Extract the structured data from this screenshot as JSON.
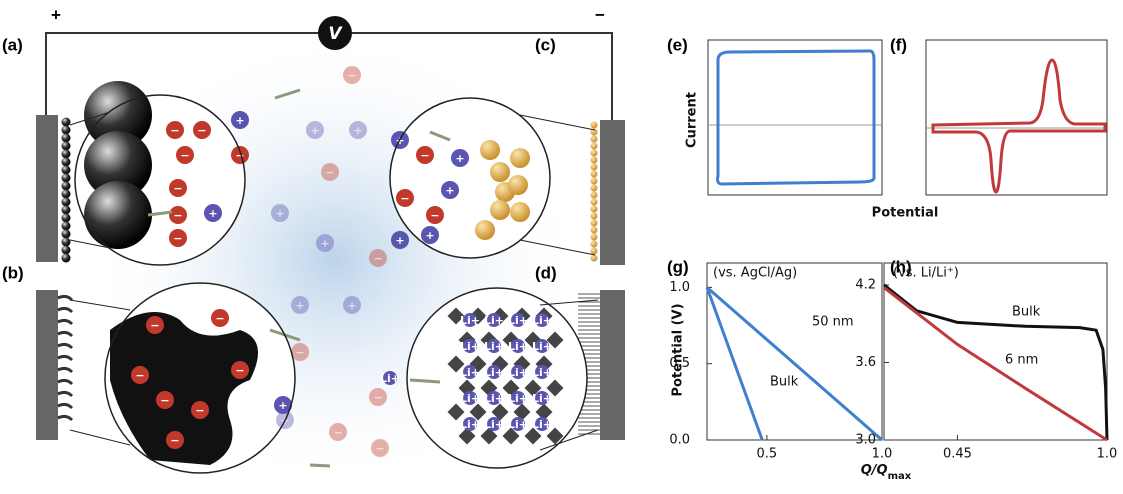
{
  "panels": {
    "a": "(a)",
    "b": "(b)",
    "c": "(c)",
    "d": "(d)",
    "e": "(e)",
    "f": "(f)",
    "g": "(g)",
    "h": "(h)"
  },
  "diagram": {
    "plus": "+",
    "minus": "−",
    "voltmeter": "V",
    "anion": "−",
    "cation": "+",
    "lithium": "Li+"
  },
  "cv": {
    "ylabel": "Current",
    "xlabel": "Potential"
  },
  "chart_data": [
    {
      "type": "line",
      "annotation": "(vs. AgCl/Ag)",
      "ylabel": "Potential (V)",
      "xlabel": {
        "main": "Q/Q",
        "sub": "max"
      },
      "xlim": [
        0.24,
        1
      ],
      "xticks": [
        0.5,
        {
          "value": 1,
          "label": "1.0"
        }
      ],
      "ylim": [
        0,
        1.16
      ],
      "yticks": [
        {
          "value": 0,
          "label": "0.0"
        },
        0.5,
        {
          "value": 1,
          "label": "1.0"
        }
      ],
      "series": [
        {
          "name": "50 nm",
          "color": "#3f7fd0",
          "x": [
            0.24,
            1
          ],
          "values": [
            1,
            0
          ]
        },
        {
          "name": "Bulk",
          "color": "#3f7fd0",
          "x": [
            0.24,
            0.48
          ],
          "values": [
            1,
            0
          ]
        }
      ]
    },
    {
      "type": "line",
      "annotation": "(vs. Li/Li⁺)",
      "xlim": [
        0.18,
        1
      ],
      "xticks": [
        0.45,
        {
          "value": 1,
          "label": "1.0"
        }
      ],
      "ylim": [
        3,
        4.37
      ],
      "yticks": [
        {
          "value": 3,
          "label": "3.0"
        },
        3.6,
        4.2
      ],
      "series": [
        {
          "name": "Bulk",
          "color": "#111111",
          "x": [
            0.18,
            0.3,
            0.45,
            0.7,
            0.9,
            0.96,
            0.985,
            0.995,
            1
          ],
          "values": [
            4.2,
            4.0,
            3.91,
            3.88,
            3.87,
            3.85,
            3.7,
            3.4,
            3.0
          ]
        },
        {
          "name": "6 nm",
          "color": "#c0393b",
          "x": [
            0.18,
            0.45,
            0.7,
            1
          ],
          "values": [
            4.18,
            3.74,
            3.4,
            3.0
          ]
        }
      ]
    }
  ]
}
